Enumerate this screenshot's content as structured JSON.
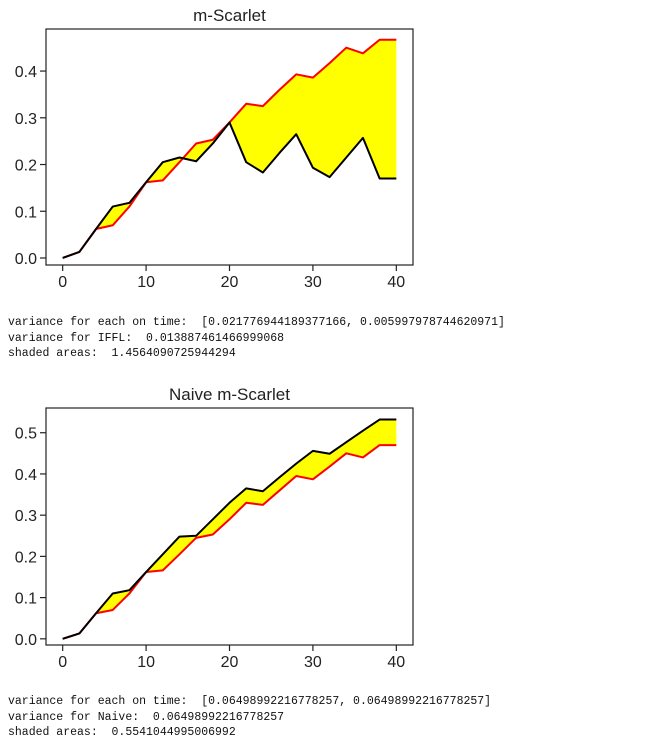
{
  "chart_data": [
    {
      "type": "line",
      "title": "m-Scarlet",
      "xlabel": "",
      "ylabel": "",
      "xlim": [
        -2,
        42
      ],
      "ylim": [
        -0.015,
        0.49
      ],
      "xticks": [
        0,
        10,
        20,
        30,
        40
      ],
      "yticks": [
        0.0,
        0.1,
        0.2,
        0.3,
        0.4
      ],
      "ytick_labels": [
        "0.0",
        "0.1",
        "0.2",
        "0.3",
        "0.4"
      ],
      "grid": false,
      "fill_color": "#ffff00",
      "x": [
        0,
        2,
        4,
        6,
        8,
        10,
        12,
        14,
        16,
        18,
        20,
        22,
        24,
        26,
        28,
        30,
        32,
        34,
        36,
        38,
        40
      ],
      "series": [
        {
          "color": "#000000",
          "values": [
            0.0,
            0.013,
            0.062,
            0.11,
            0.118,
            0.162,
            0.205,
            0.215,
            0.207,
            0.245,
            0.29,
            0.205,
            0.183,
            0.225,
            0.265,
            0.193,
            0.173,
            0.215,
            0.257,
            0.17,
            0.17
          ]
        },
        {
          "color": "#ff0000",
          "values": [
            0.0,
            0.013,
            0.062,
            0.07,
            0.11,
            0.162,
            0.166,
            0.205,
            0.245,
            0.253,
            0.29,
            0.33,
            0.325,
            0.36,
            0.393,
            0.386,
            0.417,
            0.45,
            0.438,
            0.467,
            0.467
          ]
        }
      ]
    },
    {
      "type": "line",
      "title": "Naive m-Scarlet",
      "xlabel": "",
      "ylabel": "",
      "xlim": [
        -2,
        42
      ],
      "ylim": [
        -0.015,
        0.56
      ],
      "xticks": [
        0,
        10,
        20,
        30,
        40
      ],
      "yticks": [
        0.0,
        0.1,
        0.2,
        0.3,
        0.4,
        0.5
      ],
      "ytick_labels": [
        "0.0",
        "0.1",
        "0.2",
        "0.3",
        "0.4",
        "0.5"
      ],
      "grid": false,
      "fill_color": "#ffff00",
      "x": [
        0,
        2,
        4,
        6,
        8,
        10,
        12,
        14,
        16,
        18,
        20,
        22,
        24,
        26,
        28,
        30,
        32,
        34,
        36,
        38,
        40
      ],
      "series": [
        {
          "color": "#000000",
          "values": [
            0.0,
            0.013,
            0.062,
            0.11,
            0.118,
            0.162,
            0.205,
            0.248,
            0.25,
            0.29,
            0.33,
            0.365,
            0.358,
            0.392,
            0.425,
            0.456,
            0.449,
            0.477,
            0.505,
            0.532,
            0.532
          ]
        },
        {
          "color": "#ff0000",
          "values": [
            0.0,
            0.013,
            0.062,
            0.07,
            0.11,
            0.162,
            0.166,
            0.205,
            0.245,
            0.253,
            0.29,
            0.33,
            0.325,
            0.36,
            0.395,
            0.387,
            0.418,
            0.45,
            0.44,
            0.47,
            0.47
          ]
        }
      ]
    }
  ],
  "outputs": {
    "first": [
      "variance for each on time:  [0.021776944189377166, 0.005997978744620971]",
      "variance for IFFL:  0.013887461466999068",
      "shaded areas:  1.4564090725944294"
    ],
    "second": [
      "variance for each on time:  [0.06498992216778257, 0.06498992216778257]",
      "variance for Naive:  0.06498992216778257",
      "shaded areas:  0.5541044995006992"
    ]
  }
}
